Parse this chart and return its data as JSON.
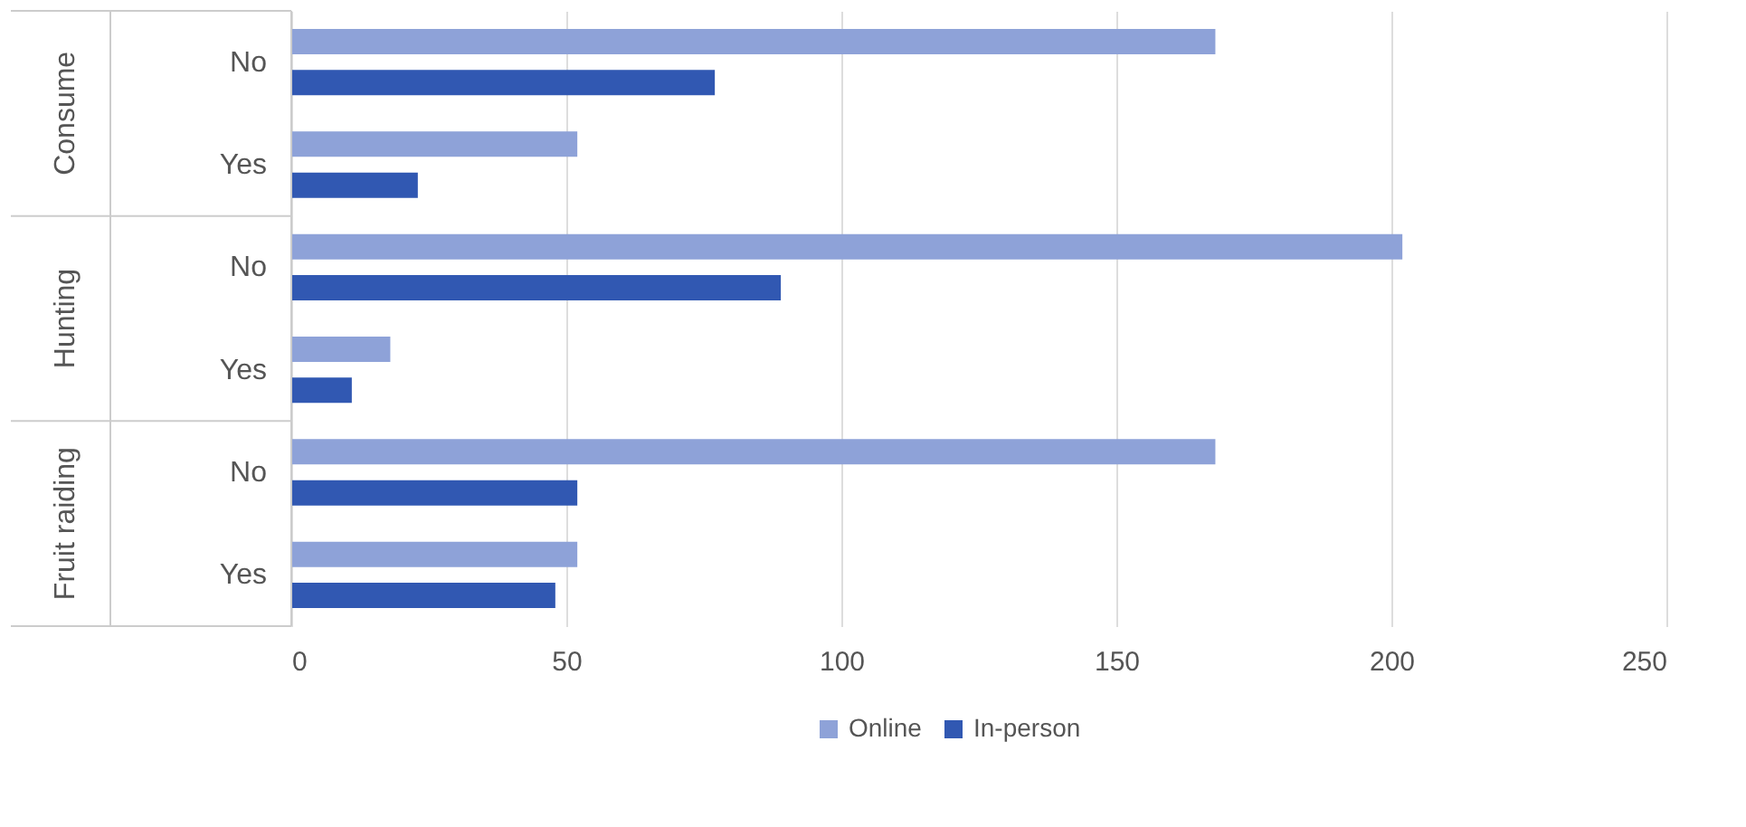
{
  "chart_data": {
    "type": "bar",
    "orientation": "horizontal",
    "categories": [
      "No",
      "Yes",
      "No",
      "Yes",
      "No",
      "Yes"
    ],
    "series": [
      {
        "name": "Online",
        "color": "#8ea2d8",
        "values": [
          168,
          52,
          202,
          18,
          168,
          52
        ]
      },
      {
        "name": "In-person",
        "color": "#3158b2",
        "values": [
          77,
          23,
          89,
          11,
          52,
          48
        ]
      }
    ],
    "annotations": [
      "Consume",
      "Hunting",
      "Fruit raiding"
    ],
    "xlim": [
      0,
      250
    ],
    "xticks": [
      0,
      50,
      100,
      150,
      200,
      250
    ],
    "grid": "x",
    "legend": "bottom"
  }
}
